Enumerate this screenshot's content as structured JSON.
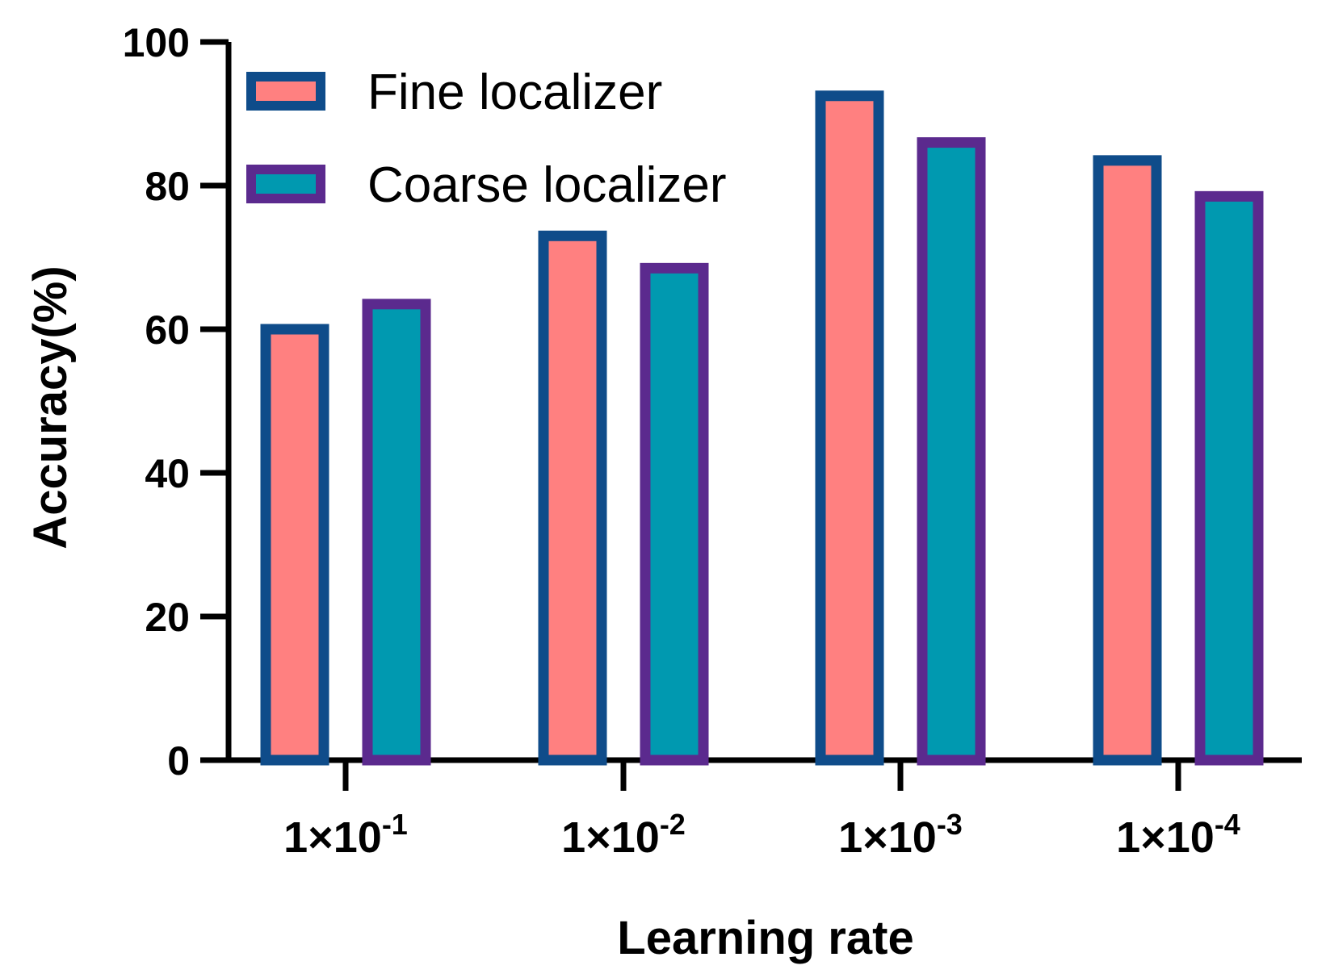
{
  "chart_data": {
    "type": "bar",
    "title": "",
    "xlabel": "Learning rate",
    "ylabel": "Accuracy(%)",
    "ylim": [
      0,
      100
    ],
    "yticks": [
      "0",
      "20",
      "40",
      "60",
      "80",
      "100"
    ],
    "yticks_values": [
      0,
      20,
      40,
      60,
      80,
      100
    ],
    "categories": [
      {
        "base": "1×10",
        "exp": "-1"
      },
      {
        "base": "1×10",
        "exp": "-2"
      },
      {
        "base": "1×10",
        "exp": "-3"
      },
      {
        "base": "1×10",
        "exp": "-4"
      }
    ],
    "series": [
      {
        "name": "Fine localizer",
        "values": [
          60,
          73,
          92.5,
          83.5
        ],
        "fill": "#FF8080",
        "stroke": "#0F4C8A"
      },
      {
        "name": "Coarse localizer",
        "values": [
          63.5,
          68.5,
          86,
          78.5
        ],
        "fill": "#0099B0",
        "stroke": "#5B2A8E"
      }
    ],
    "legend_position": "top-left",
    "grid": false
  }
}
